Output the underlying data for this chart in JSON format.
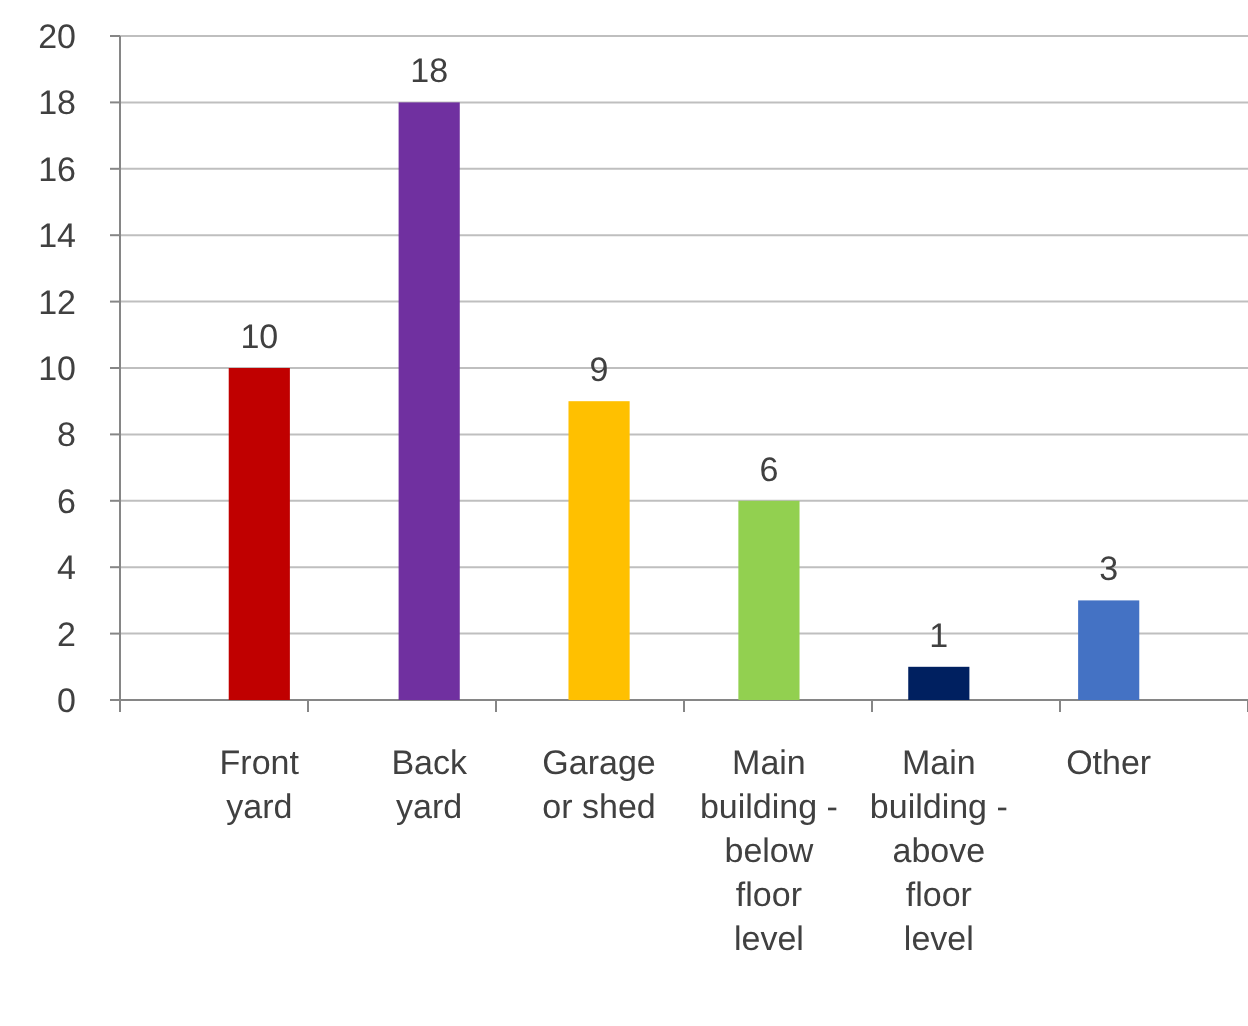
{
  "chart_data": {
    "type": "bar",
    "categories": [
      "Front yard",
      "Back yard",
      "Garage or shed",
      "Main building - below floor level",
      "Main building - above floor level",
      "Other"
    ],
    "values": [
      10,
      18,
      9,
      6,
      1,
      3
    ],
    "colors": [
      "#c00000",
      "#7030a0",
      "#ffc000",
      "#92d050",
      "#002060",
      "#4472c4"
    ],
    "ylim": [
      0,
      20
    ],
    "yticks": [
      0,
      2,
      4,
      6,
      8,
      10,
      12,
      14,
      16,
      18,
      20
    ],
    "grid": "y",
    "data_labels": true
  }
}
